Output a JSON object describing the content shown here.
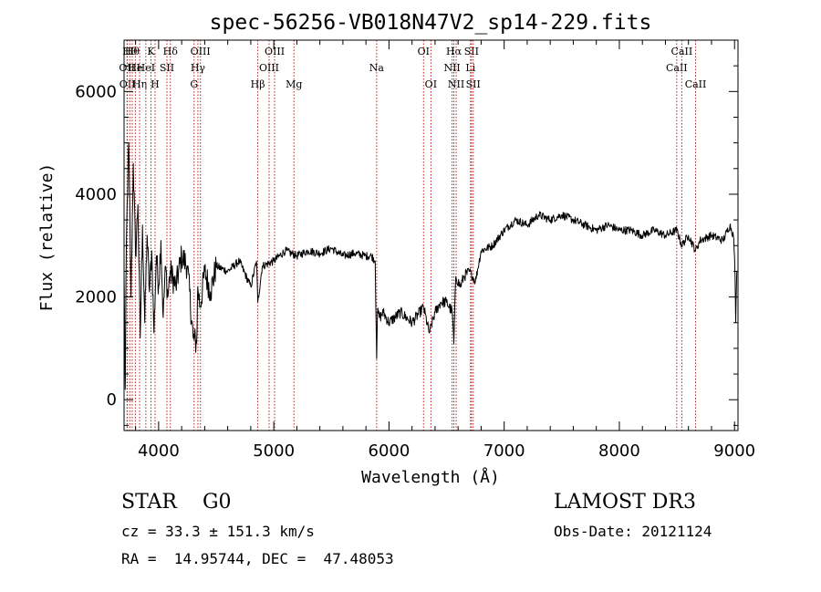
{
  "colors": {
    "spectrum": "#000000",
    "line_marker": "#b22222",
    "axis": "#000000",
    "background": "#ffffff"
  },
  "chart_data": {
    "type": "line",
    "title": "spec-56256-VB018N47V2_sp14-229.fits",
    "xlabel": "Wavelength (Å)",
    "ylabel": "Flux (relative)",
    "xlim": [
      3700,
      9030
    ],
    "ylim": [
      -600,
      7000
    ],
    "xticks": [
      4000,
      5000,
      6000,
      7000,
      8000,
      9000
    ],
    "yticks": [
      0,
      2000,
      4000,
      6000
    ],
    "grid": false,
    "series": [
      {
        "name": "spectrum",
        "x": [
          3700,
          3710,
          3720,
          3740,
          3760,
          3780,
          3800,
          3820,
          3840,
          3860,
          3880,
          3900,
          3920,
          3940,
          3960,
          3980,
          4000,
          4020,
          4040,
          4060,
          4080,
          4100,
          4150,
          4200,
          4250,
          4300,
          4330,
          4340,
          4360,
          4400,
          4450,
          4500,
          4600,
          4700,
          4800,
          4850,
          4861,
          4900,
          5000,
          5100,
          5200,
          5300,
          5400,
          5500,
          5600,
          5700,
          5800,
          5850,
          5880,
          5893,
          5900,
          5920,
          5950,
          6000,
          6100,
          6200,
          6300,
          6350,
          6400,
          6450,
          6500,
          6550,
          6563,
          6580,
          6620,
          6650,
          6700,
          6750,
          6800,
          6900,
          7000,
          7100,
          7200,
          7300,
          7400,
          7500,
          7600,
          7700,
          7800,
          7900,
          8000,
          8100,
          8200,
          8300,
          8400,
          8500,
          8542,
          8600,
          8662,
          8700,
          8800,
          8900,
          8960,
          8990,
          9000,
          9005,
          9010,
          9020
        ],
        "y": [
          2500,
          200,
          3000,
          5000,
          2000,
          4600,
          2800,
          3800,
          1200,
          3400,
          1500,
          3200,
          2100,
          2900,
          1300,
          2800,
          2200,
          3100,
          1600,
          2600,
          2000,
          2500,
          2200,
          2800,
          2600,
          1200,
          1100,
          2200,
          1800,
          2500,
          2100,
          2600,
          2500,
          2700,
          2200,
          2700,
          1900,
          2600,
          2700,
          2900,
          2800,
          2900,
          2850,
          2950,
          2800,
          2850,
          2800,
          2800,
          2700,
          800,
          1700,
          1600,
          1700,
          1500,
          1700,
          1500,
          1800,
          1300,
          1700,
          1900,
          1900,
          1700,
          1100,
          2400,
          2200,
          2400,
          2500,
          2300,
          2900,
          3000,
          3300,
          3500,
          3400,
          3600,
          3500,
          3600,
          3500,
          3400,
          3300,
          3400,
          3300,
          3300,
          3200,
          3300,
          3200,
          3300,
          3000,
          3200,
          2900,
          3100,
          3200,
          3100,
          3400,
          3200,
          2800,
          2400,
          1500,
          2500
        ]
      }
    ],
    "line_markers": [
      {
        "x": 3726,
        "label": "OII",
        "row": 2
      },
      {
        "x": 3729,
        "label": "OII",
        "row": 3
      },
      {
        "x": 3750,
        "label": "Hθ",
        "row": 1
      },
      {
        "x": 3771,
        "label": "Hθ",
        "row": 1
      },
      {
        "x": 3798,
        "label": "He",
        "row": 2
      },
      {
        "x": 3835,
        "label": "Hη",
        "row": 3
      },
      {
        "x": 3889,
        "label": "HeI",
        "row": 2
      },
      {
        "x": 3934,
        "label": "K",
        "row": 1
      },
      {
        "x": 3969,
        "label": "H",
        "row": 3
      },
      {
        "x": 4072,
        "label": "SII",
        "row": 2
      },
      {
        "x": 4102,
        "label": "Hδ",
        "row": 1
      },
      {
        "x": 4308,
        "label": "G",
        "row": 3
      },
      {
        "x": 4341,
        "label": "Hγ",
        "row": 2
      },
      {
        "x": 4363,
        "label": "OIII",
        "row": 1
      },
      {
        "x": 4861,
        "label": "Hβ",
        "row": 3
      },
      {
        "x": 4959,
        "label": "OIII",
        "row": 2
      },
      {
        "x": 5007,
        "label": "OIII",
        "row": 1
      },
      {
        "x": 5175,
        "label": "Mg",
        "row": 3
      },
      {
        "x": 5893,
        "label": "Na",
        "row": 2
      },
      {
        "x": 6300,
        "label": "OI",
        "row": 1
      },
      {
        "x": 6364,
        "label": "OI",
        "row": 3
      },
      {
        "x": 6548,
        "label": "NII",
        "row": 2
      },
      {
        "x": 6563,
        "label": "Hα",
        "row": 1
      },
      {
        "x": 6583,
        "label": "NII",
        "row": 3
      },
      {
        "x": 6708,
        "label": "Li",
        "row": 2
      },
      {
        "x": 6716,
        "label": "SII",
        "row": 1
      },
      {
        "x": 6731,
        "label": "SII",
        "row": 3
      },
      {
        "x": 8498,
        "label": "CaII",
        "row": 2
      },
      {
        "x": 8542,
        "label": "CaII",
        "row": 1
      },
      {
        "x": 8662,
        "label": "CaII",
        "row": 3
      }
    ]
  },
  "footer": {
    "object_class": "STAR    G0",
    "survey": "LAMOST DR3",
    "redshift": "cz = 33.3 ± 151.3 km/s",
    "obs_date": "Obs-Date: 20121124",
    "coords": "RA =  14.95744, DEC =  47.48053"
  }
}
